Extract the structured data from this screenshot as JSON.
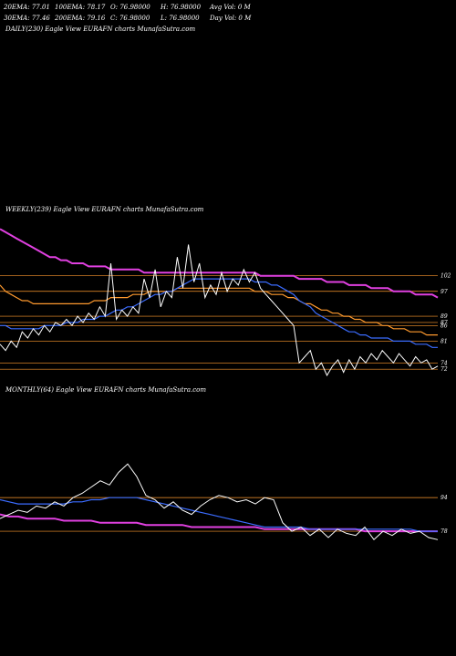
{
  "header": {
    "row1": {
      "ema20": "20EMA: 77.01",
      "ema100": "100EMA: 78.17",
      "open": "O: 76.98000",
      "high": "H: 76.98000",
      "avgvol": "Avg Vol: 0  M"
    },
    "row2": {
      "ema30": "30EMA: 77.46",
      "ema200": "200EMA: 79.16",
      "close": "C: 76.98000",
      "low": "L: 76.98000",
      "dayvol": "Day Vol: 0  M"
    }
  },
  "panels": {
    "daily": {
      "label": "DAILY(230) Eagle   View  EURAFN  charts MunafaSutra.com"
    },
    "weekly": {
      "label": "WEEKLY(239) Eagle   View  EURAFN  charts MunafaSutra.com"
    },
    "monthly": {
      "label": "MONTHLY(64) Eagle   View  EURAFN  charts MunafaSutra.com"
    }
  },
  "colors": {
    "price": "#ffffff",
    "ema_fast": "#3b6cff",
    "ema_long": "#e040e0",
    "ema_mid": "#ff9a2e",
    "ema_slow": "#9a5a20",
    "level": "#ff9a2e"
  },
  "chart_data": [
    {
      "type": "line",
      "name": "weekly",
      "ylim": [
        70,
        118
      ],
      "levels": [
        {
          "value": 89,
          "label": "89"
        },
        {
          "value": 102,
          "label": "102"
        },
        {
          "value": 97,
          "label": "97"
        },
        {
          "value": 86,
          "label": "86"
        },
        {
          "value": 87,
          "label": "87"
        },
        {
          "value": 81,
          "label": "81"
        },
        {
          "value": 72,
          "label": "72"
        },
        {
          "value": 74,
          "label": "74"
        }
      ],
      "series": [
        {
          "role": "price",
          "values": [
            80,
            78,
            81,
            79,
            84,
            82,
            85,
            83,
            86,
            84,
            87,
            86,
            88,
            86,
            89,
            87,
            90,
            88,
            92,
            89,
            106,
            88,
            91,
            89,
            92,
            90,
            101,
            95,
            104,
            92,
            97,
            95,
            108,
            98,
            112,
            100,
            106,
            95,
            99,
            96,
            103,
            97,
            101,
            99,
            104,
            100,
            103,
            98,
            96,
            94,
            92,
            90,
            88,
            86,
            74,
            76,
            78,
            72,
            74,
            70,
            73,
            75,
            71,
            75,
            72,
            76,
            74,
            77,
            75,
            78,
            76,
            74,
            77,
            75,
            73,
            76,
            74,
            75,
            72,
            73
          ]
        },
        {
          "role": "ema_fast",
          "values": [
            86,
            86,
            85,
            85,
            85,
            85,
            85,
            85,
            86,
            86,
            86,
            86,
            87,
            87,
            87,
            88,
            88,
            88,
            89,
            89,
            90,
            91,
            91,
            92,
            92,
            93,
            94,
            95,
            96,
            96,
            97,
            97,
            98,
            99,
            100,
            101,
            101,
            101,
            101,
            101,
            101,
            101,
            101,
            101,
            101,
            101,
            100,
            100,
            100,
            99,
            99,
            98,
            97,
            96,
            94,
            93,
            92,
            90,
            89,
            88,
            87,
            86,
            85,
            84,
            84,
            83,
            83,
            82,
            82,
            82,
            82,
            81,
            81,
            81,
            81,
            80,
            80,
            80,
            79,
            79
          ]
        },
        {
          "role": "ema_mid",
          "values": [
            99,
            97,
            96,
            95,
            94,
            94,
            93,
            93,
            93,
            93,
            93,
            93,
            93,
            93,
            93,
            93,
            93,
            94,
            94,
            94,
            95,
            95,
            95,
            95,
            96,
            96,
            96,
            97,
            97,
            97,
            97,
            97,
            98,
            98,
            98,
            98,
            98,
            98,
            98,
            98,
            98,
            98,
            98,
            98,
            98,
            98,
            97,
            97,
            97,
            96,
            96,
            96,
            95,
            95,
            94,
            93,
            93,
            92,
            91,
            91,
            90,
            90,
            89,
            89,
            88,
            88,
            87,
            87,
            87,
            86,
            86,
            85,
            85,
            85,
            84,
            84,
            84,
            83,
            83,
            83
          ]
        },
        {
          "role": "ema_long",
          "values": [
            117,
            116,
            115,
            114,
            113,
            112,
            111,
            110,
            109,
            108,
            108,
            107,
            107,
            106,
            106,
            106,
            105,
            105,
            105,
            105,
            104,
            104,
            104,
            104,
            104,
            104,
            103,
            103,
            103,
            103,
            103,
            103,
            103,
            103,
            103,
            103,
            103,
            103,
            103,
            103,
            103,
            103,
            103,
            103,
            103,
            103,
            103,
            102,
            102,
            102,
            102,
            102,
            102,
            102,
            101,
            101,
            101,
            101,
            101,
            100,
            100,
            100,
            100,
            99,
            99,
            99,
            99,
            98,
            98,
            98,
            98,
            97,
            97,
            97,
            97,
            96,
            96,
            96,
            96,
            95
          ]
        }
      ]
    },
    {
      "type": "line",
      "name": "monthly",
      "ylim": [
        62,
        114
      ],
      "levels": [
        {
          "value": 94,
          "label": "94"
        },
        {
          "value": 78,
          "label": "78"
        }
      ],
      "series": [
        {
          "role": "price",
          "values": [
            84,
            86,
            88,
            87,
            90,
            89,
            92,
            90,
            94,
            96,
            99,
            102,
            100,
            106,
            110,
            104,
            95,
            93,
            89,
            92,
            88,
            86,
            90,
            93,
            95,
            94,
            92,
            93,
            91,
            94,
            93,
            82,
            78,
            80,
            76,
            79,
            75,
            79,
            77,
            76,
            80,
            74,
            78,
            76,
            79,
            77,
            78,
            75,
            74
          ]
        },
        {
          "role": "ema_fast",
          "values": [
            93,
            92,
            91,
            91,
            91,
            91,
            91,
            91,
            92,
            92,
            93,
            93,
            94,
            94,
            94,
            94,
            93,
            92,
            91,
            90,
            89,
            88,
            87,
            86,
            85,
            84,
            83,
            82,
            81,
            80,
            80,
            80,
            80,
            80,
            79,
            79,
            79,
            79,
            79,
            79,
            79,
            79,
            79,
            79,
            79,
            79,
            78,
            78,
            78
          ]
        },
        {
          "role": "ema_long",
          "values": [
            86,
            85,
            85,
            84,
            84,
            84,
            84,
            83,
            83,
            83,
            83,
            82,
            82,
            82,
            82,
            82,
            81,
            81,
            81,
            81,
            81,
            80,
            80,
            80,
            80,
            80,
            80,
            80,
            80,
            79,
            79,
            79,
            79,
            79,
            79,
            79,
            79,
            79,
            79,
            79,
            78,
            78,
            78,
            78,
            78,
            78,
            78,
            78,
            78
          ]
        }
      ]
    }
  ]
}
